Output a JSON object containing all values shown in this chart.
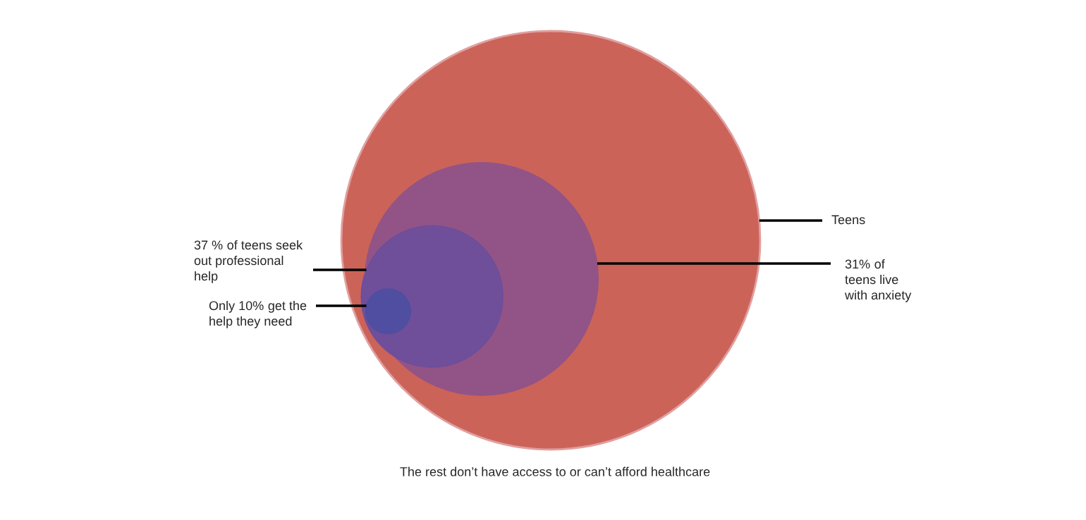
{
  "chart_data": {
    "type": "other",
    "categories": [
      "Teens",
      "of\nteens live\nwith anxiety",
      "of teens seek\nout professional\nhelp",
      "get the\nhelp they need"
    ],
    "values": [
      null,
      31,
      37,
      10
    ],
    "value_labels": [
      null,
      "31%",
      "37 %",
      "Only 10%"
    ],
    "colors": [
      "#cc6359",
      "#925486",
      "#6f4e9a",
      "#4f4ea0"
    ],
    "annotations": [
      "The rest don’t have access to or can’t afford healthcare"
    ]
  }
}
